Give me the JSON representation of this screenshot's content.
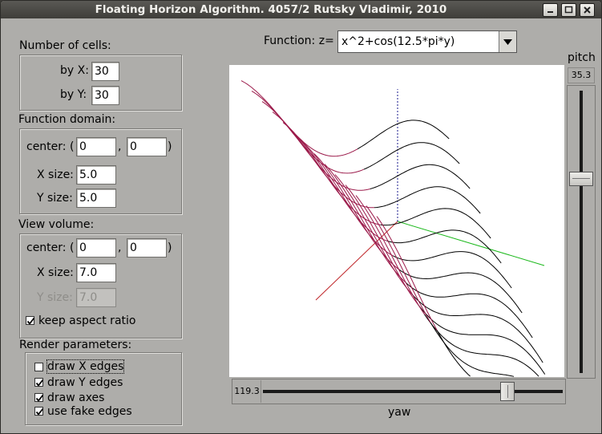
{
  "window": {
    "title": "Floating Horizon Algorithm. 4057/2  Rutsky Vladimir, 2010",
    "buttons": [
      "minimize-icon",
      "maximize-icon",
      "close-icon"
    ]
  },
  "cells": {
    "heading": "Number of cells:",
    "by_x_label": "by X:",
    "by_x_value": "30",
    "by_y_label": "by Y:",
    "by_y_value": "30"
  },
  "domain": {
    "heading": "Function domain:",
    "center_label": "center: (",
    "center_x": "0",
    "comma": ",",
    "center_y": "0",
    "close_paren": ")",
    "x_size_label": "X size:",
    "x_size": "5.0",
    "y_size_label": "Y size:",
    "y_size": "5.0"
  },
  "view": {
    "heading": "View volume:",
    "center_label": "center: (",
    "center_x": "0",
    "comma": ",",
    "center_y": "0",
    "close_paren": ")",
    "x_size_label": "X size:",
    "x_size": "7.0",
    "y_size_label": "Y size:",
    "y_size": "7.0",
    "keep_aspect_label": "keep aspect ratio",
    "keep_aspect": true
  },
  "render": {
    "heading": "Render parameters:",
    "options": [
      {
        "label": "draw X edges",
        "checked": false
      },
      {
        "label": "draw Y edges",
        "checked": true
      },
      {
        "label": "draw axes",
        "checked": true
      },
      {
        "label": "use fake edges",
        "checked": true
      }
    ]
  },
  "function": {
    "label": "Function: z=",
    "value": "x^2+cos(12.5*pi*y)"
  },
  "pitch": {
    "label": "pitch",
    "value": "35.3"
  },
  "yaw": {
    "label": "yaw",
    "value": "119.3"
  },
  "colors": {
    "front": "#9b1a4a",
    "back": "#000000",
    "axis_x": "#c0262a",
    "axis_y": "#1ab81a",
    "axis_z": "#1a1a8c"
  }
}
